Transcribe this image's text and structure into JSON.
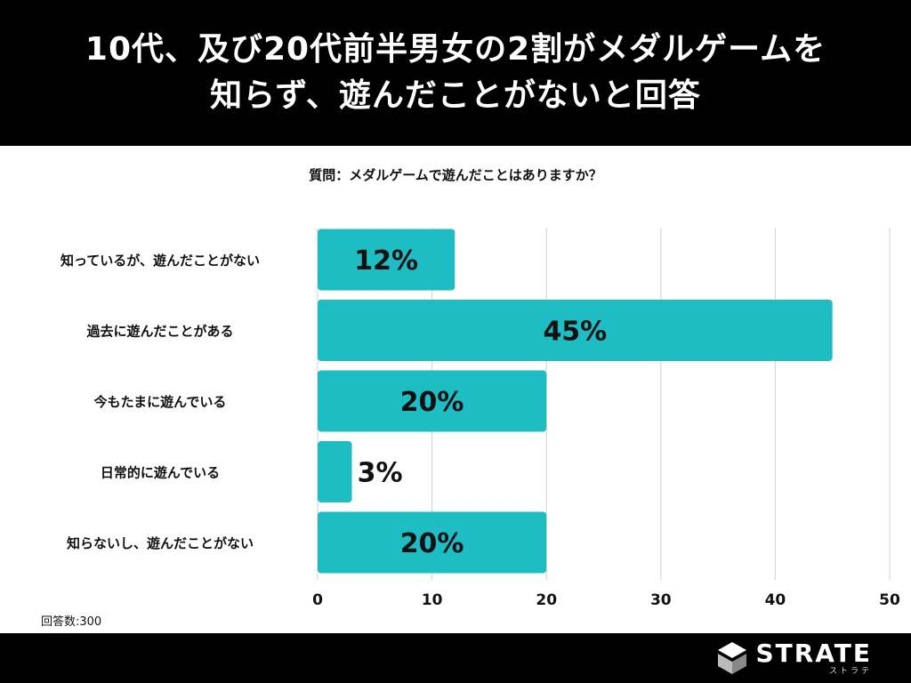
{
  "header": {
    "title_line1": "10代、及び20代前半男女の2割がメダルゲームを",
    "title_line2": "知らず、遊んだことがないと回答"
  },
  "question": "質問：メダルゲームで遊んだことはありますか？",
  "footnote": "回答数:300",
  "brand": {
    "name": "STRATE",
    "sub": "ストラテ"
  },
  "colors": {
    "bar": "#1ebcc3",
    "grid": "#cfcfcf",
    "background": "#ffffff",
    "header": "#000000"
  },
  "chart_data": {
    "type": "bar",
    "orientation": "horizontal",
    "categories": [
      "知っているが、遊んだことがない",
      "過去に遊んだことがある",
      "今もたまに遊んでいる",
      "日常的に遊んでいる",
      "知らないし、遊んだことがない"
    ],
    "values": [
      12,
      45,
      20,
      3,
      20
    ],
    "data_labels": [
      "12%",
      "45%",
      "20%",
      "3%",
      "20%"
    ],
    "xlim": [
      0,
      50
    ],
    "xticks": [
      "0",
      "10",
      "20",
      "30",
      "40",
      "50"
    ],
    "grid": true
  }
}
